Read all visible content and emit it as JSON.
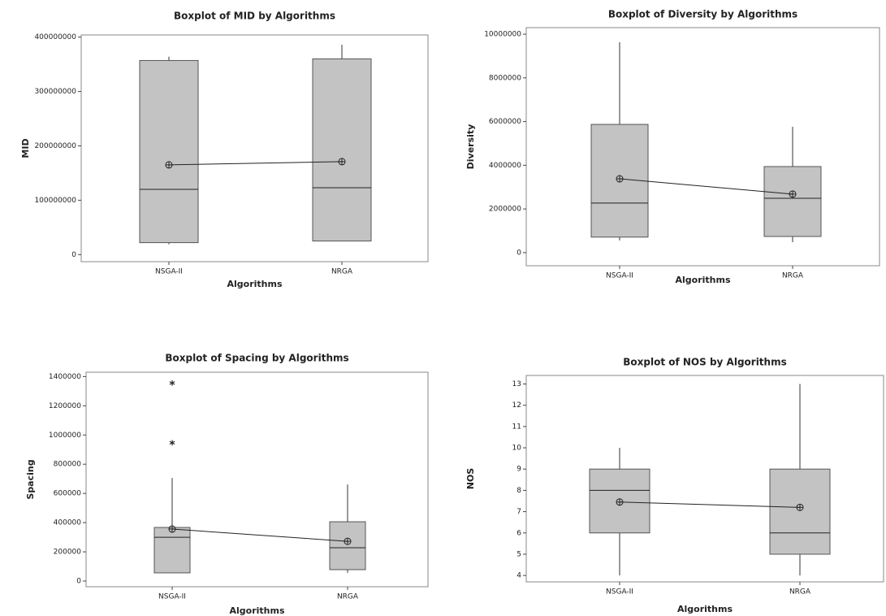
{
  "chart_data": [
    {
      "type": "boxplot",
      "title": "Boxplot of MID by Algorithms",
      "xlabel": "Algorithms",
      "ylabel": "MID",
      "categories": [
        "NSGA-II",
        "NRGA"
      ],
      "boxes": [
        {
          "whisker_low": 19000000,
          "q1": 22000000,
          "median": 120000000,
          "q3": 357000000,
          "whisker_high": 364000000,
          "mean": 165000000,
          "outliers": []
        },
        {
          "whisker_low": 25000000,
          "q1": 25000000,
          "median": 123000000,
          "q3": 360000000,
          "whisker_high": 386000000,
          "mean": 171000000,
          "outliers": []
        }
      ],
      "ylim": [
        -13000000,
        404000000
      ],
      "yticks": [
        0,
        100000000,
        200000000,
        300000000,
        400000000
      ],
      "color": "#c3c3c3"
    },
    {
      "type": "boxplot",
      "title": "Boxplot of Diversity by Algorithms",
      "xlabel": "Algorithms",
      "ylabel": "Diversity",
      "categories": [
        "NSGA-II",
        "NRGA"
      ],
      "boxes": [
        {
          "whisker_low": 560000,
          "q1": 710000,
          "median": 2270000,
          "q3": 5870000,
          "whisker_high": 9630000,
          "mean": 3380000,
          "outliers": []
        },
        {
          "whisker_low": 480000,
          "q1": 740000,
          "median": 2490000,
          "q3": 3940000,
          "whisker_high": 5760000,
          "mean": 2680000,
          "outliers": []
        }
      ],
      "ylim": [
        -600000,
        10300000
      ],
      "yticks": [
        0,
        2000000,
        4000000,
        6000000,
        8000000,
        10000000
      ],
      "color": "#c3c3c3"
    },
    {
      "type": "boxplot",
      "title": "Boxplot of Spacing by Algorithms",
      "xlabel": "Algorithms",
      "ylabel": "Spacing",
      "categories": [
        "NSGA-II",
        "NRGA"
      ],
      "boxes": [
        {
          "whisker_low": 56000,
          "q1": 56000,
          "median": 300000,
          "q3": 367000,
          "whisker_high": 706000,
          "mean": 356000,
          "outliers": [
            1350000,
            939000
          ]
        },
        {
          "whisker_low": 56000,
          "q1": 78000,
          "median": 228000,
          "q3": 406000,
          "whisker_high": 661000,
          "mean": 272000,
          "outliers": []
        }
      ],
      "ylim": [
        -39000,
        1430000
      ],
      "yticks": [
        0,
        200000,
        400000,
        600000,
        800000,
        1000000,
        1200000,
        1400000
      ],
      "color": "#c3c3c3"
    },
    {
      "type": "boxplot",
      "title": "Boxplot of NOS by Algorithms",
      "xlabel": "Algorithms",
      "ylabel": "NOS",
      "categories": [
        "NSGA-II",
        "NRGA"
      ],
      "boxes": [
        {
          "whisker_low": 4,
          "q1": 6,
          "median": 8,
          "q3": 9,
          "whisker_high": 10,
          "mean": 7.45,
          "outliers": []
        },
        {
          "whisker_low": 4,
          "q1": 5,
          "median": 6,
          "q3": 9,
          "whisker_high": 13,
          "mean": 7.2,
          "outliers": []
        }
      ],
      "ylim": [
        3.7,
        13.4
      ],
      "yticks": [
        4,
        5,
        6,
        7,
        8,
        9,
        10,
        11,
        12,
        13
      ],
      "color": "#c3c3c3"
    }
  ]
}
